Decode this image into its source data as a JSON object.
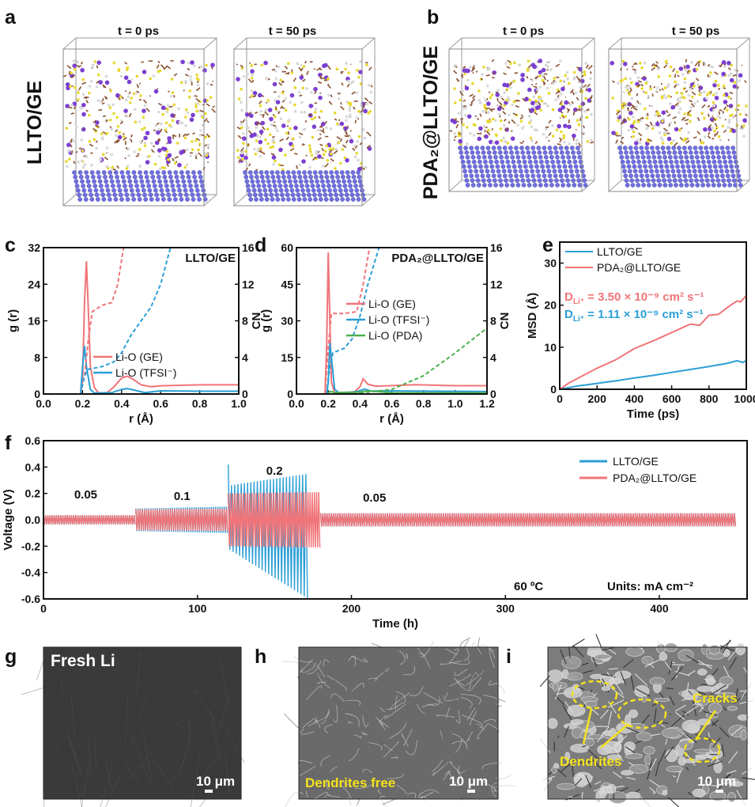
{
  "colors": {
    "red": "#f07478",
    "blue": "#2b9ed6",
    "green": "#4cb050",
    "axis": "#111111",
    "atom_li": "#7b3fd0",
    "atom_s": "#e8d830",
    "atom_c": "#8a5030",
    "lattice": "#7070e0"
  },
  "panels": {
    "a": {
      "letter": "a",
      "side_label": "LLTO/GE",
      "frame_titles": [
        "t = 0 ps",
        "t = 50 ps"
      ]
    },
    "b": {
      "letter": "b",
      "side_label": "PDA₂@LLTO/GE",
      "frame_titles": [
        "t = 0 ps",
        "t = 50 ps"
      ]
    },
    "g": {
      "letter": "g",
      "caption": "Fresh Li",
      "scale_bar": "10 μm"
    },
    "h": {
      "letter": "h",
      "caption": "Dendrites free",
      "scale_bar": "10 μm"
    },
    "i": {
      "letter": "i",
      "annotations": [
        "Cracks",
        "Dendrites"
      ],
      "scale_bar": "10 μm"
    }
  },
  "chart_data": [
    {
      "panel": "c",
      "type": "line",
      "title": "LLTO/GE",
      "xlabel": "r (Å)",
      "ylabel": "g (r)",
      "y2label": "CN",
      "xlim": [
        0,
        1.0
      ],
      "ylim": [
        0,
        32
      ],
      "y2lim": [
        0,
        16
      ],
      "xticks": [
        "0.0",
        "0.2",
        "0.4",
        "0.6",
        "0.8",
        "1.0"
      ],
      "yticks": [
        "0",
        "8",
        "16",
        "24",
        "32"
      ],
      "y2ticks": [
        "0",
        "4",
        "8",
        "12",
        "16"
      ],
      "legend": "center-right",
      "series": [
        {
          "name": "Li-O (GE)",
          "color": "#f07478",
          "axis": "left",
          "style": "solid",
          "points": [
            [
              0,
              0
            ],
            [
              0.19,
              0
            ],
            [
              0.2,
              3
            ],
            [
              0.21,
              20
            ],
            [
              0.22,
              29
            ],
            [
              0.23,
              18
            ],
            [
              0.24,
              6
            ],
            [
              0.26,
              1.5
            ],
            [
              0.28,
              0.3
            ],
            [
              0.32,
              0.1
            ],
            [
              0.36,
              1.5
            ],
            [
              0.4,
              3.5
            ],
            [
              0.43,
              3.9
            ],
            [
              0.46,
              3.2
            ],
            [
              0.5,
              2
            ],
            [
              0.55,
              1.6
            ],
            [
              0.6,
              1.8
            ],
            [
              0.7,
              1.9
            ],
            [
              0.8,
              2
            ],
            [
              1.0,
              2
            ]
          ]
        },
        {
          "name": "Li-O (TFSI⁻)",
          "color": "#2b9ed6",
          "axis": "left",
          "style": "solid",
          "points": [
            [
              0,
              0
            ],
            [
              0.19,
              0
            ],
            [
              0.2,
              6
            ],
            [
              0.21,
              10.5
            ],
            [
              0.22,
              6
            ],
            [
              0.24,
              1
            ],
            [
              0.26,
              0.2
            ],
            [
              0.35,
              0.3
            ],
            [
              0.4,
              1
            ],
            [
              0.43,
              1.2
            ],
            [
              0.47,
              0.8
            ],
            [
              0.52,
              0.3
            ],
            [
              0.6,
              0.7
            ],
            [
              0.8,
              0.6
            ],
            [
              1.0,
              0.6
            ]
          ]
        },
        {
          "color": "#f07478",
          "axis": "right",
          "style": "dashed",
          "points": [
            [
              0.19,
              0
            ],
            [
              0.21,
              2
            ],
            [
              0.23,
              6
            ],
            [
              0.25,
              9
            ],
            [
              0.3,
              9.7
            ],
            [
              0.35,
              10
            ],
            [
              0.38,
              12
            ],
            [
              0.41,
              16
            ]
          ]
        },
        {
          "color": "#2b9ed6",
          "axis": "right",
          "style": "dashed",
          "points": [
            [
              0.19,
              0
            ],
            [
              0.21,
              2
            ],
            [
              0.23,
              2.7
            ],
            [
              0.3,
              3
            ],
            [
              0.36,
              3.5
            ],
            [
              0.4,
              4.5
            ],
            [
              0.45,
              6.5
            ],
            [
              0.5,
              8
            ],
            [
              0.55,
              9.5
            ],
            [
              0.6,
              12
            ],
            [
              0.65,
              16
            ]
          ]
        }
      ]
    },
    {
      "panel": "d",
      "type": "line",
      "title": "PDA₂@LLTO/GE",
      "xlabel": "r (Å)",
      "ylabel": "g (r)",
      "y2label": "CN",
      "xlim": [
        0,
        1.2
      ],
      "ylim": [
        0,
        60
      ],
      "y2lim": [
        0,
        16
      ],
      "xticks": [
        "0.0",
        "0.2",
        "0.4",
        "0.6",
        "0.8",
        "1.0",
        "1.2"
      ],
      "yticks": [
        "0",
        "15",
        "30",
        "45",
        "60"
      ],
      "y2ticks": [
        "0",
        "4",
        "8",
        "12",
        "16"
      ],
      "legend": "center-right",
      "series": [
        {
          "name": "Li-O (GE)",
          "color": "#f07478",
          "axis": "left",
          "style": "solid",
          "points": [
            [
              0,
              0
            ],
            [
              0.18,
              0
            ],
            [
              0.19,
              20
            ],
            [
              0.2,
              58
            ],
            [
              0.21,
              30
            ],
            [
              0.22,
              5
            ],
            [
              0.24,
              0.5
            ],
            [
              0.36,
              0.5
            ],
            [
              0.4,
              3
            ],
            [
              0.42,
              6.2
            ],
            [
              0.45,
              4
            ],
            [
              0.5,
              3.2
            ],
            [
              0.75,
              3.8
            ],
            [
              1.0,
              3.4
            ],
            [
              1.2,
              3.4
            ]
          ]
        },
        {
          "name": "Li-O (TFSI⁻)",
          "color": "#2b9ed6",
          "axis": "left",
          "style": "solid",
          "points": [
            [
              0,
              0
            ],
            [
              0.19,
              0
            ],
            [
              0.2,
              5
            ],
            [
              0.21,
              21
            ],
            [
              0.22,
              15
            ],
            [
              0.24,
              2
            ],
            [
              0.27,
              0.3
            ],
            [
              0.38,
              1
            ],
            [
              0.43,
              2
            ],
            [
              0.47,
              1.2
            ],
            [
              0.6,
              1.3
            ],
            [
              1.2,
              1
            ]
          ]
        },
        {
          "name": "Li-O (PDA)",
          "color": "#4cb050",
          "axis": "left",
          "style": "solid",
          "points": [
            [
              0,
              0
            ],
            [
              0.19,
              0
            ],
            [
              0.21,
              1
            ],
            [
              0.25,
              0.6
            ],
            [
              0.4,
              0.8
            ],
            [
              0.45,
              1.3
            ],
            [
              0.6,
              0.5
            ],
            [
              1.2,
              0.5
            ]
          ]
        },
        {
          "color": "#f07478",
          "axis": "right",
          "style": "dashed",
          "points": [
            [
              0.18,
              0
            ],
            [
              0.2,
              5
            ],
            [
              0.22,
              8.8
            ],
            [
              0.3,
              8.8
            ],
            [
              0.38,
              9
            ],
            [
              0.42,
              12
            ],
            [
              0.46,
              16
            ]
          ]
        },
        {
          "color": "#2b9ed6",
          "axis": "right",
          "style": "dashed",
          "points": [
            [
              0.19,
              0
            ],
            [
              0.21,
              3
            ],
            [
              0.23,
              4.5
            ],
            [
              0.3,
              5
            ],
            [
              0.35,
              6
            ],
            [
              0.4,
              8.5
            ],
            [
              0.45,
              12
            ],
            [
              0.52,
              16
            ]
          ]
        },
        {
          "color": "#4cb050",
          "axis": "right",
          "style": "dashed",
          "points": [
            [
              0.2,
              0
            ],
            [
              0.4,
              0.1
            ],
            [
              0.6,
              0.5
            ],
            [
              0.8,
              2
            ],
            [
              1.0,
              4.5
            ],
            [
              1.2,
              7.2
            ]
          ]
        }
      ]
    },
    {
      "panel": "e",
      "type": "line",
      "xlabel": "Time (ps)",
      "ylabel": "MSD (Å)",
      "xlim": [
        0,
        1000
      ],
      "ylim": [
        0,
        35
      ],
      "xticks": [
        "0",
        "200",
        "400",
        "600",
        "800",
        "1000"
      ],
      "yticks": [
        "0",
        "10",
        "20",
        "30"
      ],
      "legend": "top-left",
      "annotations": [
        {
          "symbol": "D",
          "sub": "Li⁺",
          "text": " = 3.50 × 10⁻⁹ cm² s⁻¹",
          "color": "#f07478"
        },
        {
          "symbol": "D",
          "sub": "Li⁺",
          "text": " = 1.11 × 10⁻⁹ cm² s⁻¹",
          "color": "#2b9ed6"
        }
      ],
      "series": [
        {
          "name": "LLTO/GE",
          "color": "#2b9ed6",
          "points": [
            [
              0,
              0
            ],
            [
              100,
              0.8
            ],
            [
              200,
              1.4
            ],
            [
              300,
              2
            ],
            [
              400,
              2.7
            ],
            [
              500,
              3.3
            ],
            [
              600,
              4
            ],
            [
              700,
              4.7
            ],
            [
              800,
              5.4
            ],
            [
              900,
              6.2
            ],
            [
              950,
              6.8
            ],
            [
              980,
              6.4
            ],
            [
              1000,
              6.8
            ]
          ]
        },
        {
          "name": "PDA₂@LLTO/GE",
          "color": "#f07478",
          "points": [
            [
              0,
              0
            ],
            [
              50,
              1.5
            ],
            [
              100,
              2.7
            ],
            [
              200,
              5
            ],
            [
              300,
              7
            ],
            [
              400,
              9.7
            ],
            [
              500,
              11.5
            ],
            [
              600,
              13.5
            ],
            [
              700,
              15.5
            ],
            [
              750,
              15.2
            ],
            [
              800,
              17.6
            ],
            [
              850,
              17.8
            ],
            [
              900,
              19.5
            ],
            [
              950,
              21
            ],
            [
              970,
              20.8
            ],
            [
              1000,
              22.3
            ]
          ]
        }
      ]
    },
    {
      "panel": "f",
      "type": "line",
      "xlabel": "Time (h)",
      "ylabel": "Voltage (V)",
      "xlim": [
        0,
        457
      ],
      "ylim": [
        -0.6,
        0.6
      ],
      "xticks": [
        "0",
        "100",
        "200",
        "300",
        "400"
      ],
      "yticks": [
        "-0.6",
        "-0.4",
        "-0.2",
        "0.0",
        "0.2",
        "0.4",
        "0.6"
      ],
      "legend": "top-right",
      "annotations": [
        "60 ºC",
        "Units: mA cm⁻²"
      ],
      "current_steps": [
        {
          "label": "0.05",
          "start_h": 0,
          "end_h": 60
        },
        {
          "label": "0.1",
          "start_h": 60,
          "end_h": 120
        },
        {
          "label": "0.2",
          "start_h": 120,
          "end_h": 180
        },
        {
          "label": "0.05",
          "start_h": 180,
          "end_h": 450
        }
      ],
      "series": [
        {
          "name": "LLTO/GE",
          "color": "#2b9ed6",
          "envelope": [
            {
              "start_h": 0,
              "end_h": 60,
              "upper": [
                0.035,
                0.035
              ],
              "lower": [
                -0.035,
                -0.035
              ]
            },
            {
              "start_h": 60,
              "end_h": 120,
              "upper": [
                0.085,
                0.1
              ],
              "lower": [
                -0.085,
                -0.1
              ]
            },
            {
              "start_h": 120,
              "end_h": 172,
              "upper": [
                0.26,
                0.35
              ],
              "lower": [
                -0.22,
                -0.6
              ]
            },
            {
              "start_h": 180,
              "end_h": 450,
              "upper": [
                0.05,
                0.05
              ],
              "lower": [
                -0.05,
                -0.05
              ]
            }
          ]
        },
        {
          "name": "PDA₂@LLTO/GE",
          "color": "#f07478",
          "envelope": [
            {
              "start_h": 0,
              "end_h": 60,
              "upper": [
                0.035,
                0.035
              ],
              "lower": [
                -0.035,
                -0.035
              ]
            },
            {
              "start_h": 60,
              "end_h": 120,
              "upper": [
                0.08,
                0.085
              ],
              "lower": [
                -0.08,
                -0.085
              ]
            },
            {
              "start_h": 120,
              "end_h": 180,
              "upper": [
                0.2,
                0.21
              ],
              "lower": [
                -0.2,
                -0.21
              ]
            },
            {
              "start_h": 180,
              "end_h": 450,
              "upper": [
                0.05,
                0.05
              ],
              "lower": [
                -0.05,
                -0.05
              ]
            }
          ]
        }
      ]
    }
  ]
}
